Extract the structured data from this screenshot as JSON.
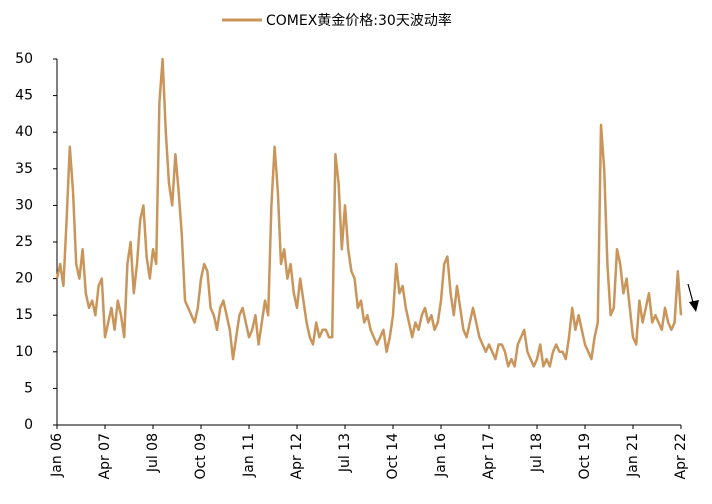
{
  "chart_data": {
    "type": "line",
    "categories": [
      "Jan 06",
      null,
      null,
      null,
      null,
      null,
      null,
      null,
      null,
      null,
      null,
      null,
      null,
      null,
      null,
      "Apr 07",
      null,
      null,
      null,
      null,
      null,
      null,
      null,
      null,
      null,
      null,
      null,
      null,
      null,
      null,
      "Jul 08",
      null,
      null,
      null,
      null,
      null,
      null,
      null,
      null,
      null,
      null,
      null,
      null,
      null,
      null,
      "Oct 09",
      null,
      null,
      null,
      null,
      null,
      null,
      null,
      null,
      null,
      null,
      null,
      null,
      null,
      null,
      "Jan 11",
      null,
      null,
      null,
      null,
      null,
      null,
      null,
      null,
      null,
      null,
      null,
      null,
      null,
      null,
      "Apr 12",
      null,
      null,
      null,
      null,
      null,
      null,
      null,
      null,
      null,
      null,
      null,
      null,
      null,
      null,
      "Jul 13",
      null,
      null,
      null,
      null,
      null,
      null,
      null,
      null,
      null,
      null,
      null,
      null,
      null,
      null,
      "Oct 14",
      null,
      null,
      null,
      null,
      null,
      null,
      null,
      null,
      null,
      null,
      null,
      null,
      null,
      null,
      "Jan 16",
      null,
      null,
      null,
      null,
      null,
      null,
      null,
      null,
      null,
      null,
      null,
      null,
      null,
      null,
      "Apr 17",
      null,
      null,
      null,
      null,
      null,
      null,
      null,
      null,
      null,
      null,
      null,
      null,
      null,
      null,
      "Jul 18",
      null,
      null,
      null,
      null,
      null,
      null,
      null,
      null,
      null,
      null,
      null,
      null,
      null,
      null,
      "Oct 19",
      null,
      null,
      null,
      null,
      null,
      null,
      null,
      null,
      null,
      null,
      null,
      null,
      null,
      null,
      "Jan 21",
      null,
      null,
      null,
      null,
      null,
      null,
      null,
      null,
      null,
      null,
      null,
      null,
      null,
      null,
      "Apr 22"
    ],
    "series": [
      {
        "name": "COMEX黄金价格:30天波动率",
        "color": "#c9955a",
        "values": [
          20,
          22,
          19,
          28,
          38,
          32,
          22,
          20,
          24,
          18,
          16,
          17,
          15,
          19,
          20,
          12,
          14,
          16,
          13,
          17,
          15,
          12,
          22,
          25,
          18,
          22,
          28,
          30,
          23,
          20,
          24,
          22,
          44,
          50,
          40,
          33,
          30,
          37,
          32,
          26,
          17,
          16,
          15,
          14,
          16,
          20,
          22,
          21,
          16,
          15,
          13,
          16,
          17,
          15,
          13,
          9,
          12,
          15,
          16,
          14,
          12,
          13,
          15,
          11,
          14,
          17,
          15,
          30,
          38,
          32,
          22,
          24,
          20,
          22,
          18,
          16,
          20,
          17,
          14,
          12,
          11,
          14,
          12,
          13,
          13,
          12,
          12,
          37,
          33,
          24,
          30,
          24,
          21,
          20,
          16,
          17,
          14,
          15,
          13,
          12,
          11,
          12,
          13,
          10,
          12,
          15,
          22,
          18,
          19,
          16,
          14,
          12,
          14,
          13,
          15,
          16,
          14,
          15,
          13,
          14,
          17,
          22,
          23,
          18,
          15,
          19,
          16,
          13,
          12,
          14,
          16,
          14,
          12,
          11,
          10,
          11,
          10,
          9,
          11,
          11,
          10,
          8,
          9,
          8,
          11,
          12,
          13,
          10,
          9,
          8,
          9,
          11,
          8,
          9,
          8,
          10,
          11,
          10,
          10,
          9,
          12,
          16,
          13,
          15,
          13,
          11,
          10,
          9,
          12,
          14,
          41,
          35,
          22,
          15,
          16,
          24,
          22,
          18,
          20,
          16,
          12,
          11,
          17,
          14,
          16,
          18,
          14,
          15,
          14,
          13,
          16,
          14,
          13,
          14,
          21,
          15
        ]
      }
    ],
    "ylim": [
      0,
      50
    ],
    "yticks": [
      0,
      5,
      10,
      15,
      20,
      25,
      30,
      35,
      40,
      45,
      50
    ],
    "grid": false,
    "legend": "top"
  }
}
